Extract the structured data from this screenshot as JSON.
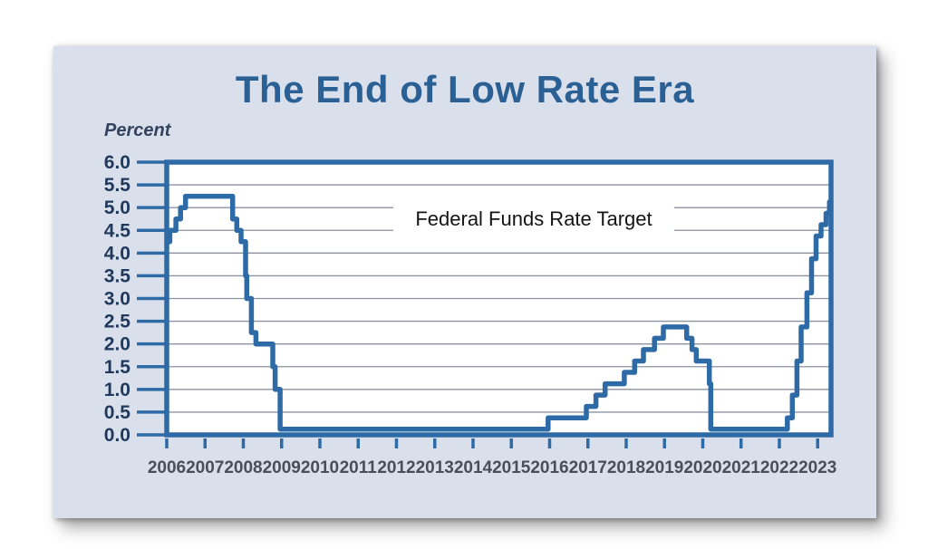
{
  "card": {
    "title": "The End of Low Rate Era",
    "y_axis_label": "Percent",
    "series_label": "Federal Funds Rate Target"
  },
  "colors": {
    "card_background": "#dae0eb",
    "title_blue": "#2b6095",
    "line_blue": "#2e6ba6",
    "grid_gray": "#8c939f",
    "y_tick_label_color": "#20395c",
    "x_tick_label_color": "#494e57"
  },
  "chart_data": {
    "type": "line",
    "line_style": "step-after",
    "title": "The End of Low Rate Era",
    "ylabel": "Percent",
    "xlabel": "",
    "annotation": "Federal Funds Rate Target",
    "grid": "horizontal-only",
    "legend_position": "none",
    "xlim": [
      2006,
      2023.35
    ],
    "ylim": [
      0,
      6
    ],
    "y_ticks": [
      {
        "value": 6.0,
        "label": "6.0"
      },
      {
        "value": 5.5,
        "label": "5.5"
      },
      {
        "value": 5.0,
        "label": "5.0"
      },
      {
        "value": 4.5,
        "label": "4.5"
      },
      {
        "value": 4.0,
        "label": "4.0"
      },
      {
        "value": 3.5,
        "label": "3.5"
      },
      {
        "value": 3.0,
        "label": "3.0"
      },
      {
        "value": 2.5,
        "label": "2.5"
      },
      {
        "value": 2.0,
        "label": "2.0"
      },
      {
        "value": 1.5,
        "label": "1.5"
      },
      {
        "value": 1.0,
        "label": "1.0"
      },
      {
        "value": 0.5,
        "label": "0.5"
      },
      {
        "value": 0.0,
        "label": "0.0"
      }
    ],
    "x_ticks": [
      {
        "value": 2006,
        "label": "2006"
      },
      {
        "value": 2007,
        "label": "2007"
      },
      {
        "value": 2008,
        "label": "2008"
      },
      {
        "value": 2009,
        "label": "2009"
      },
      {
        "value": 2010,
        "label": "2010"
      },
      {
        "value": 2011,
        "label": "2011"
      },
      {
        "value": 2012,
        "label": "2012"
      },
      {
        "value": 2013,
        "label": "2013"
      },
      {
        "value": 2014,
        "label": "2014"
      },
      {
        "value": 2015,
        "label": "2015"
      },
      {
        "value": 2016,
        "label": "2016"
      },
      {
        "value": 2017,
        "label": "2017"
      },
      {
        "value": 2018,
        "label": "2018"
      },
      {
        "value": 2019,
        "label": "2019"
      },
      {
        "value": 2020,
        "label": "2020"
      },
      {
        "value": 2021,
        "label": "2021"
      },
      {
        "value": 2022,
        "label": "2022"
      },
      {
        "value": 2023,
        "label": "2023"
      }
    ],
    "series": [
      {
        "name": "Federal Funds Rate Target",
        "unit": "percent",
        "steps": [
          [
            2006.0,
            4.25
          ],
          [
            2006.08,
            4.5
          ],
          [
            2006.24,
            4.75
          ],
          [
            2006.36,
            5.0
          ],
          [
            2006.49,
            5.25
          ],
          [
            2007.72,
            4.75
          ],
          [
            2007.83,
            4.5
          ],
          [
            2007.94,
            4.25
          ],
          [
            2008.06,
            3.5
          ],
          [
            2008.09,
            3.0
          ],
          [
            2008.21,
            2.25
          ],
          [
            2008.33,
            2.0
          ],
          [
            2008.77,
            1.5
          ],
          [
            2008.83,
            1.0
          ],
          [
            2008.96,
            0.125
          ],
          [
            2015.96,
            0.375
          ],
          [
            2016.96,
            0.625
          ],
          [
            2017.21,
            0.875
          ],
          [
            2017.45,
            1.125
          ],
          [
            2017.95,
            1.375
          ],
          [
            2018.22,
            1.625
          ],
          [
            2018.45,
            1.875
          ],
          [
            2018.74,
            2.125
          ],
          [
            2018.97,
            2.375
          ],
          [
            2019.58,
            2.125
          ],
          [
            2019.72,
            1.875
          ],
          [
            2019.83,
            1.625
          ],
          [
            2020.17,
            1.125
          ],
          [
            2020.21,
            0.125
          ],
          [
            2022.21,
            0.375
          ],
          [
            2022.34,
            0.875
          ],
          [
            2022.46,
            1.625
          ],
          [
            2022.57,
            2.375
          ],
          [
            2022.72,
            3.125
          ],
          [
            2022.84,
            3.875
          ],
          [
            2022.96,
            4.375
          ],
          [
            2023.09,
            4.625
          ],
          [
            2023.22,
            4.875
          ],
          [
            2023.31,
            5.125
          ]
        ]
      }
    ]
  }
}
